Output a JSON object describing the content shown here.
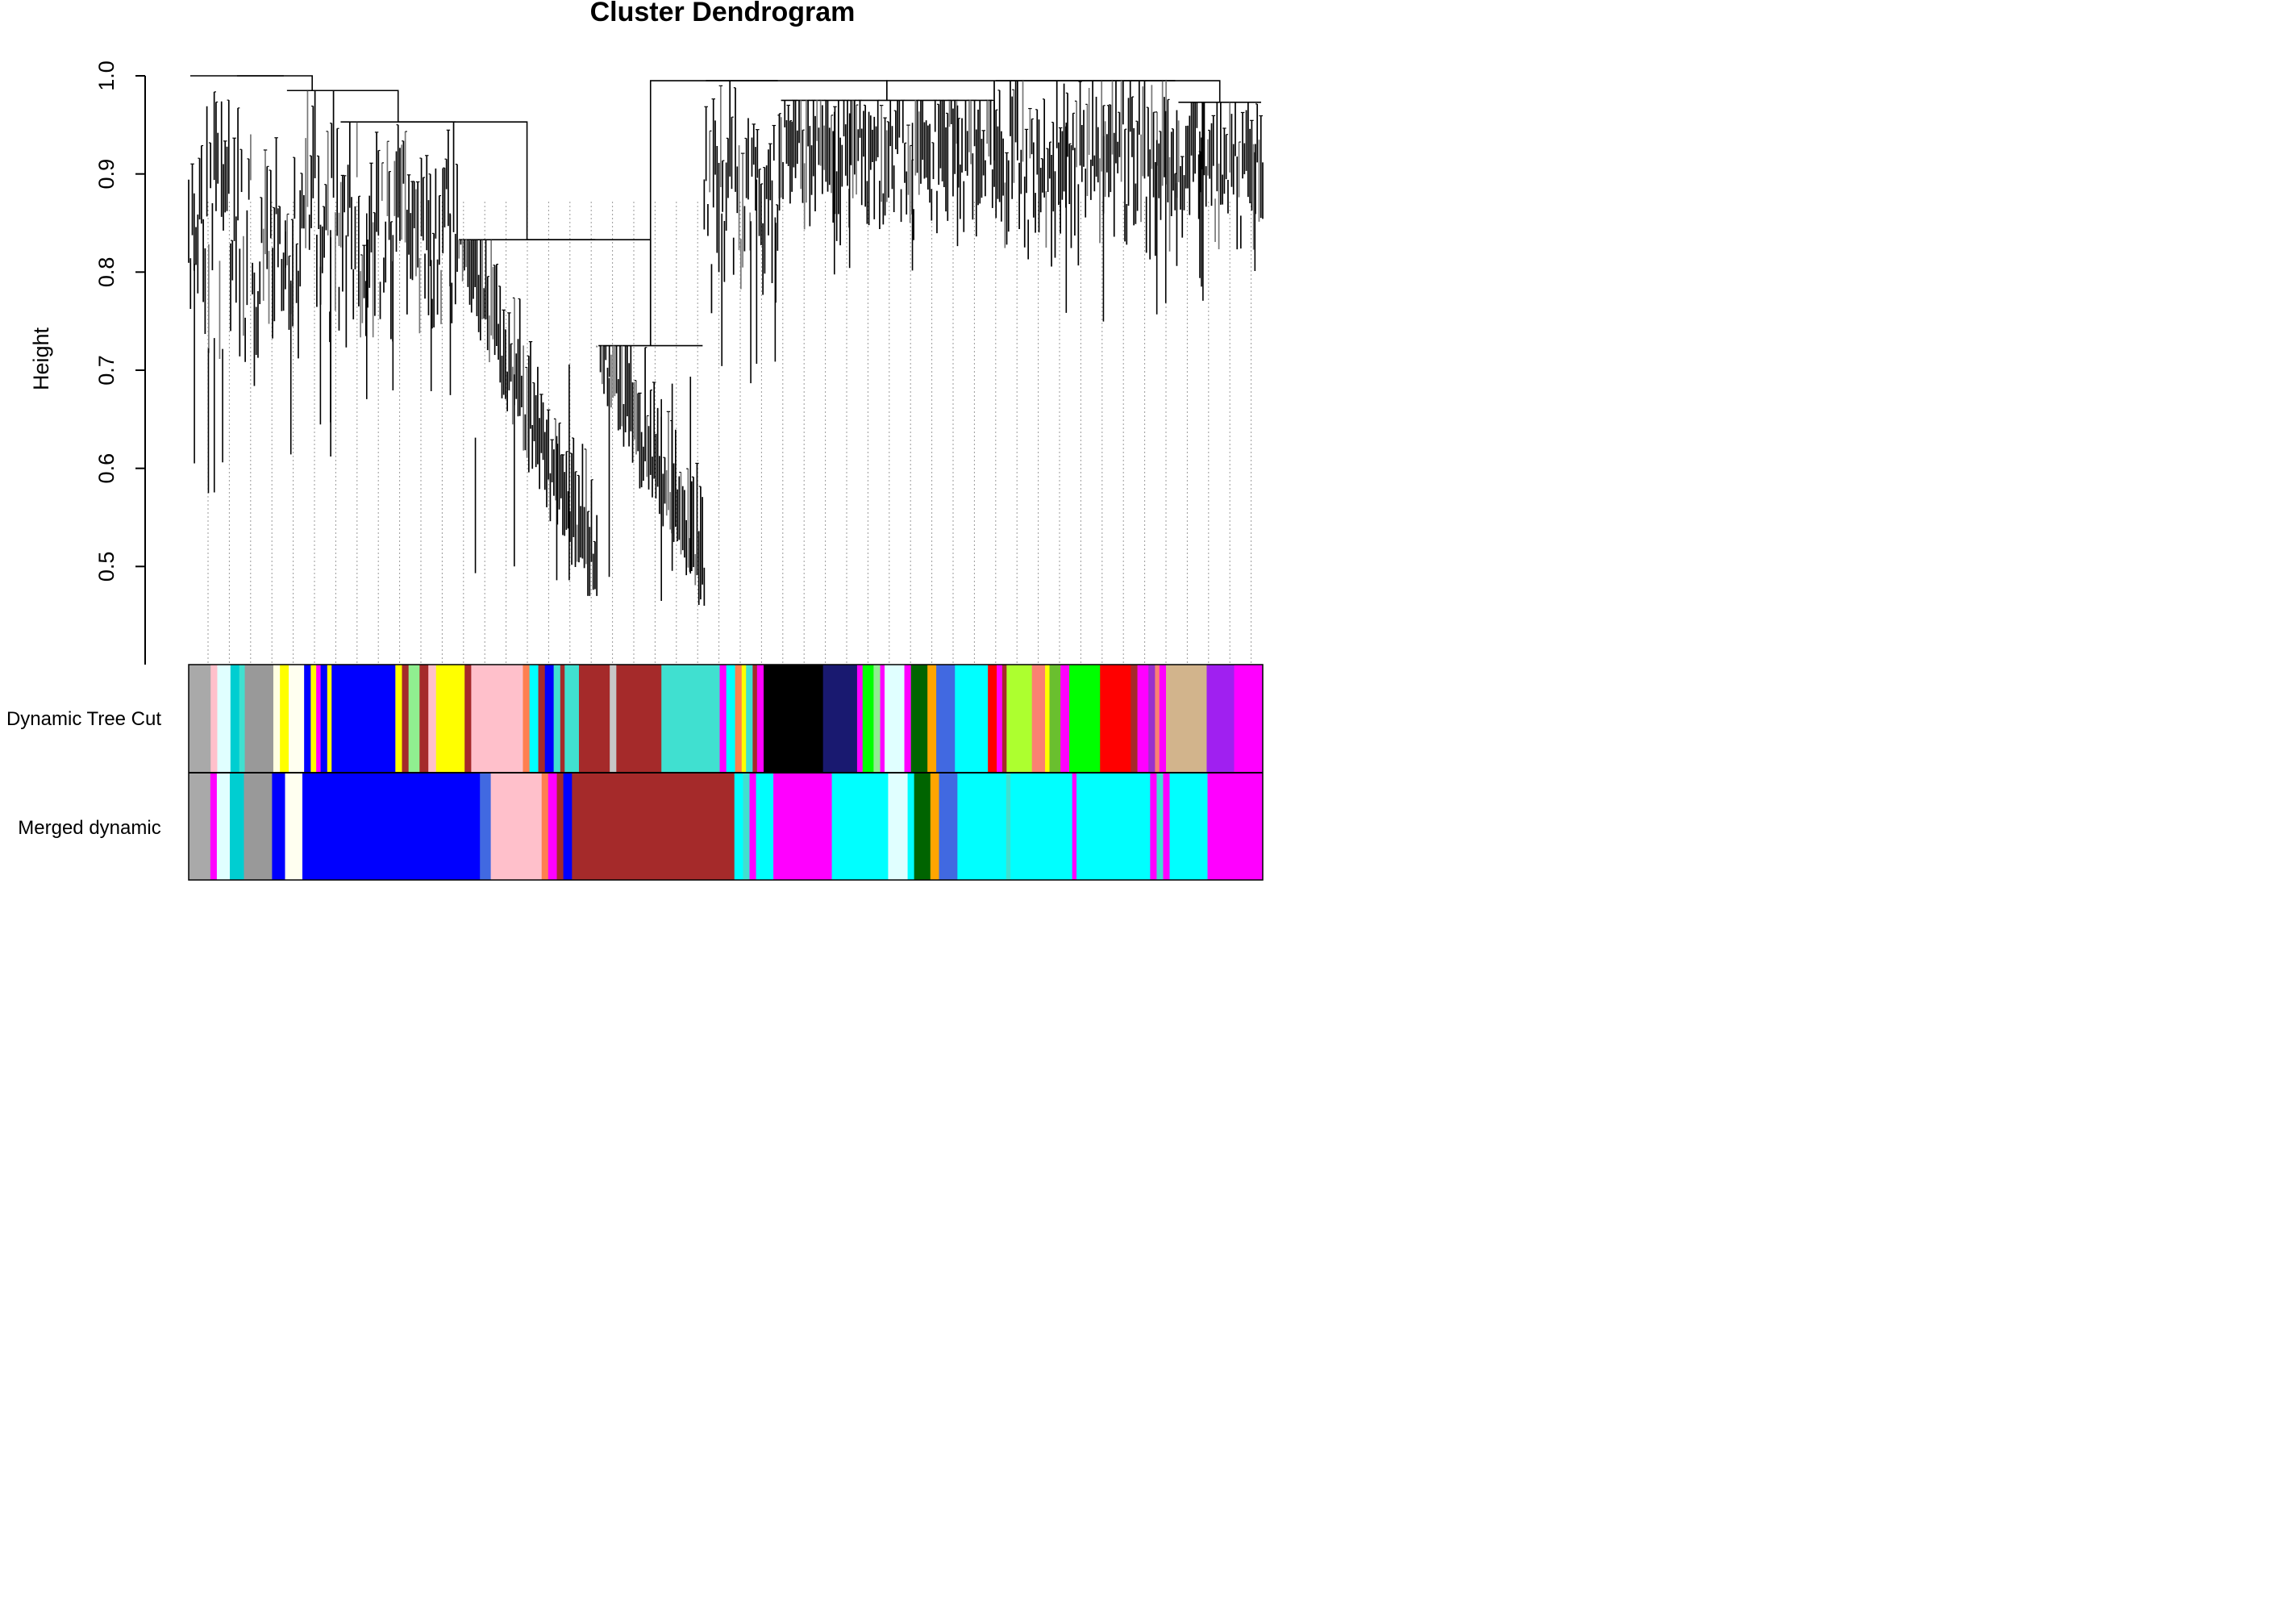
{
  "chart_data": {
    "type": "dendrogram",
    "title": "Cluster Dendrogram",
    "xlabel": "",
    "ylabel": "Height",
    "ylim": [
      0.4,
      1.0
    ],
    "yticks": [
      0.5,
      0.6,
      0.7,
      0.8,
      0.9,
      1.0
    ],
    "ytick_labels": [
      "0.5",
      "0.6",
      "0.7",
      "0.8",
      "0.9",
      "1.0"
    ],
    "leaf_count_approx": 5000,
    "branches": [
      {
        "from": 0.0,
        "to": 0.09,
        "merge": 1.0,
        "min": 0.57
      },
      {
        "from": 0.09,
        "to": 0.14,
        "merge": 0.985,
        "min": 0.61
      },
      {
        "from": 0.14,
        "to": 0.25,
        "merge": 0.953,
        "min": 0.64
      },
      {
        "from": 0.25,
        "to": 0.38,
        "merge": 0.833,
        "min": 0.47
      },
      {
        "from": 0.38,
        "to": 0.48,
        "merge": 0.725,
        "min": 0.46
      },
      {
        "from": 0.48,
        "to": 0.55,
        "merge": 0.995,
        "min": 0.68
      },
      {
        "from": 0.55,
        "to": 0.75,
        "merge": 0.975,
        "min": 0.79
      },
      {
        "from": 0.75,
        "to": 0.92,
        "merge": 0.995,
        "min": 0.74
      },
      {
        "from": 0.92,
        "to": 1.0,
        "merge": 0.973,
        "min": 0.77
      }
    ],
    "color_rows": [
      {
        "name": "Dynamic Tree Cut",
        "segments": [
          {
            "w": 0.02,
            "c": "#a9a9a9"
          },
          {
            "w": 0.006,
            "c": "#ffc0cb"
          },
          {
            "w": 0.012,
            "c": "#e0ffff"
          },
          {
            "w": 0.008,
            "c": "#00ced1"
          },
          {
            "w": 0.005,
            "c": "#40e0d0"
          },
          {
            "w": 0.026,
            "c": "#999999"
          },
          {
            "w": 0.006,
            "c": "#ffffe0"
          },
          {
            "w": 0.008,
            "c": "#ffff00"
          },
          {
            "w": 0.014,
            "c": "#fffff0"
          },
          {
            "w": 0.006,
            "c": "#0000ff"
          },
          {
            "w": 0.005,
            "c": "#ffff00"
          },
          {
            "w": 0.004,
            "c": "#ff00ff"
          },
          {
            "w": 0.006,
            "c": "#0000ff"
          },
          {
            "w": 0.004,
            "c": "#ffff00"
          },
          {
            "w": 0.058,
            "c": "#0000ff"
          },
          {
            "w": 0.006,
            "c": "#ffff00"
          },
          {
            "w": 0.006,
            "c": "#a52a2a"
          },
          {
            "w": 0.01,
            "c": "#90ee90"
          },
          {
            "w": 0.008,
            "c": "#a52a2a"
          },
          {
            "w": 0.007,
            "c": "#ffc0cb"
          },
          {
            "w": 0.026,
            "c": "#ffff00"
          },
          {
            "w": 0.006,
            "c": "#a52a2a"
          },
          {
            "w": 0.047,
            "c": "#ffc0cb"
          },
          {
            "w": 0.006,
            "c": "#ff7f50"
          },
          {
            "w": 0.008,
            "c": "#00ffff"
          },
          {
            "w": 0.006,
            "c": "#a52a2a"
          },
          {
            "w": 0.008,
            "c": "#0000ff"
          },
          {
            "w": 0.006,
            "c": "#40e0d0"
          },
          {
            "w": 0.004,
            "c": "#a52a2a"
          },
          {
            "w": 0.013,
            "c": "#40e0d0"
          },
          {
            "w": 0.028,
            "c": "#a52a2a"
          },
          {
            "w": 0.006,
            "c": "#c7c7c7"
          },
          {
            "w": 0.041,
            "c": "#a52a2a"
          },
          {
            "w": 0.053,
            "c": "#40e0d0"
          },
          {
            "w": 0.006,
            "c": "#ff00ff"
          },
          {
            "w": 0.008,
            "c": "#00ffff"
          },
          {
            "w": 0.006,
            "c": "#ff7f50"
          },
          {
            "w": 0.004,
            "c": "#ffff00"
          },
          {
            "w": 0.006,
            "c": "#40e0d0"
          },
          {
            "w": 0.004,
            "c": "#a52a2a"
          },
          {
            "w": 0.006,
            "c": "#ff00ff"
          },
          {
            "w": 0.054,
            "c": "#000000"
          },
          {
            "w": 0.031,
            "c": "#191970"
          },
          {
            "w": 0.005,
            "c": "#ff00ff"
          },
          {
            "w": 0.01,
            "c": "#00ff00"
          },
          {
            "w": 0.006,
            "c": "#90ee90"
          },
          {
            "w": 0.004,
            "c": "#ff00ff"
          },
          {
            "w": 0.018,
            "c": "#e0ffff"
          },
          {
            "w": 0.006,
            "c": "#ff00ff"
          },
          {
            "w": 0.015,
            "c": "#006400"
          },
          {
            "w": 0.008,
            "c": "#ffa500"
          },
          {
            "w": 0.017,
            "c": "#4169e1"
          },
          {
            "w": 0.03,
            "c": "#00ffff"
          },
          {
            "w": 0.008,
            "c": "#ff0000"
          },
          {
            "w": 0.005,
            "c": "#ff00ff"
          },
          {
            "w": 0.004,
            "c": "#a52a2a"
          },
          {
            "w": 0.023,
            "c": "#adff2f"
          },
          {
            "w": 0.012,
            "c": "#fa8072"
          },
          {
            "w": 0.004,
            "c": "#ffff00"
          },
          {
            "w": 0.01,
            "c": "#6abf2f"
          },
          {
            "w": 0.008,
            "c": "#ff00ff"
          },
          {
            "w": 0.028,
            "c": "#00ff00"
          },
          {
            "w": 0.028,
            "c": "#ff0000"
          },
          {
            "w": 0.006,
            "c": "#a52a2a"
          },
          {
            "w": 0.01,
            "c": "#ff00ff"
          },
          {
            "w": 0.006,
            "c": "#9932cc"
          },
          {
            "w": 0.004,
            "c": "#fa8072"
          },
          {
            "w": 0.006,
            "c": "#ff00ff"
          },
          {
            "w": 0.037,
            "c": "#d2b48c"
          },
          {
            "w": 0.025,
            "c": "#a020f0"
          },
          {
            "w": 0.026,
            "c": "#ff00ff"
          }
        ]
      },
      {
        "name": "Merged dynamic",
        "segments": [
          {
            "w": 0.02,
            "c": "#a9a9a9"
          },
          {
            "w": 0.006,
            "c": "#ff00ff"
          },
          {
            "w": 0.012,
            "c": "#e0ffff"
          },
          {
            "w": 0.013,
            "c": "#00ced1"
          },
          {
            "w": 0.026,
            "c": "#999999"
          },
          {
            "w": 0.012,
            "c": "#0000ff"
          },
          {
            "w": 0.016,
            "c": "#fffff0"
          },
          {
            "w": 0.164,
            "c": "#0000ff"
          },
          {
            "w": 0.01,
            "c": "#4169e1"
          },
          {
            "w": 0.047,
            "c": "#ffc0cb"
          },
          {
            "w": 0.006,
            "c": "#ff7f50"
          },
          {
            "w": 0.008,
            "c": "#ff00ff"
          },
          {
            "w": 0.006,
            "c": "#a52a2a"
          },
          {
            "w": 0.008,
            "c": "#0000ff"
          },
          {
            "w": 0.15,
            "c": "#a52a2a"
          },
          {
            "w": 0.008,
            "c": "#00ffff"
          },
          {
            "w": 0.006,
            "c": "#40e0d0"
          },
          {
            "w": 0.006,
            "c": "#ff00ff"
          },
          {
            "w": 0.016,
            "c": "#00ffff"
          },
          {
            "w": 0.054,
            "c": "#ff00ff"
          },
          {
            "w": 0.052,
            "c": "#00ffff"
          },
          {
            "w": 0.018,
            "c": "#e0ffff"
          },
          {
            "w": 0.006,
            "c": "#00ffff"
          },
          {
            "w": 0.015,
            "c": "#006400"
          },
          {
            "w": 0.008,
            "c": "#ffa500"
          },
          {
            "w": 0.017,
            "c": "#4169e1"
          },
          {
            "w": 0.045,
            "c": "#00ffff"
          },
          {
            "w": 0.004,
            "c": "#40e0d0"
          },
          {
            "w": 0.057,
            "c": "#00ffff"
          },
          {
            "w": 0.004,
            "c": "#ff00ff"
          },
          {
            "w": 0.068,
            "c": "#00ffff"
          },
          {
            "w": 0.006,
            "c": "#ff00ff"
          },
          {
            "w": 0.006,
            "c": "#40e0d0"
          },
          {
            "w": 0.006,
            "c": "#ff00ff"
          },
          {
            "w": 0.035,
            "c": "#00ffff"
          },
          {
            "w": 0.051,
            "c": "#ff00ff"
          }
        ]
      }
    ]
  }
}
